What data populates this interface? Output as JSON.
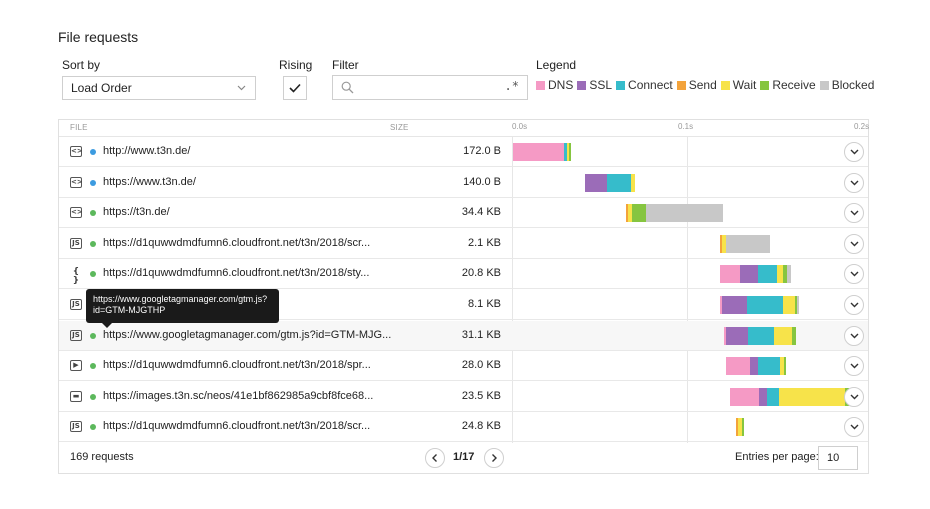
{
  "title": "File requests",
  "sort": {
    "label": "Sort by",
    "value": "Load Order"
  },
  "rising": {
    "label": "Rising",
    "checked": true
  },
  "filter": {
    "label": "Filter",
    "value": "",
    "regex_glyph": ".*"
  },
  "legend": {
    "label": "Legend",
    "items": [
      {
        "name": "DNS",
        "color": "#f59ac5"
      },
      {
        "name": "SSL",
        "color": "#9b6cb8"
      },
      {
        "name": "Connect",
        "color": "#36bccb"
      },
      {
        "name": "Send",
        "color": "#f3a33b"
      },
      {
        "name": "Wait",
        "color": "#f7e34a"
      },
      {
        "name": "Receive",
        "color": "#86c540"
      },
      {
        "name": "Blocked",
        "color": "#c8c8c8"
      }
    ]
  },
  "table": {
    "headers": {
      "file": "FILE",
      "size": "SIZE"
    },
    "timeline_labels": [
      "0.0s",
      "0.1s",
      "0.2s"
    ]
  },
  "rows": [
    {
      "icon": "html-file-icon",
      "glyph": "<>",
      "dot": "#3c9be0",
      "url": "http://www.t3n.de/",
      "size": "172.0 B",
      "timing": {
        "start": 0,
        "dns": 0.0295,
        "ssl": 0,
        "connect": 0.0017,
        "send": 0,
        "wait": 0.0011,
        "receive": 0.0011,
        "blocked": 0
      }
    },
    {
      "icon": "html-file-icon",
      "glyph": "<>",
      "dot": "#3c9be0",
      "url": "https://www.t3n.de/",
      "size": "140.0 B",
      "timing": {
        "start": 0.0416,
        "dns": 0,
        "ssl": 0.0126,
        "connect": 0.0137,
        "send": 0,
        "wait": 0.0023,
        "receive": 0,
        "blocked": 0
      }
    },
    {
      "icon": "html-file-icon",
      "glyph": "<>",
      "dot": "#5cb85c",
      "url": "https://t3n.de/",
      "size": "34.4 KB",
      "timing": {
        "start": 0.0649,
        "dns": 0,
        "ssl": 0,
        "connect": 0,
        "send": 0.0011,
        "wait": 0.0023,
        "receive": 0.008,
        "blocked": 0.0446
      }
    },
    {
      "icon": "js-file-icon",
      "glyph": "JS",
      "dot": "#5cb85c",
      "url": "https://d1quwwdmdfumn6.cloudfront.net/t3n/2018/scr...",
      "size": "2.1 KB",
      "timing": {
        "start": 0.1189,
        "dns": 0,
        "ssl": 0,
        "connect": 0,
        "send": 0.0011,
        "wait": 0.0023,
        "receive": 0,
        "blocked": 0.0251
      }
    },
    {
      "icon": "css-file-icon",
      "glyph": "{ }",
      "dot": "#5cb85c",
      "url": "https://d1quwwdmdfumn6.cloudfront.net/t3n/2018/sty...",
      "size": "20.8 KB",
      "timing": {
        "start": 0.1189,
        "dns": 0.0114,
        "ssl": 0.0103,
        "connect": 0.0114,
        "send": 0,
        "wait": 0.0034,
        "receive": 0.0023,
        "blocked": 0.0023
      }
    },
    {
      "icon": "js-file-icon",
      "glyph": "JS",
      "dot": "#5cb85c",
      "url": "",
      "size": "8.1 KB",
      "timing": {
        "start": 0.1189,
        "dns": 0.0011,
        "ssl": 0.0143,
        "connect": 0.0206,
        "send": 0,
        "wait": 0.0069,
        "receive": 0.0011,
        "blocked": 0.0011
      }
    },
    {
      "icon": "js-file-icon",
      "glyph": "JS",
      "dot": "#5cb85c",
      "url": "https://www.googletagmanager.com/gtm.js?id=GTM-MJG...",
      "size": "31.1 KB",
      "timing": {
        "start": 0.1211,
        "dns": 0.0011,
        "ssl": 0.0131,
        "connect": 0.0149,
        "send": 0,
        "wait": 0.0103,
        "receive": 0.0023,
        "blocked": 0
      }
    },
    {
      "icon": "video-file-icon",
      "glyph": "▶",
      "dot": "#5cb85c",
      "url": "https://d1quwwdmdfumn6.cloudfront.net/t3n/2018/spr...",
      "size": "28.0 KB",
      "timing": {
        "start": 0.1223,
        "dns": 0.0137,
        "ssl": 0.0046,
        "connect": 0.0126,
        "send": 0,
        "wait": 0.0023,
        "receive": 0.0011,
        "blocked": 0
      }
    },
    {
      "icon": "image-file-icon",
      "glyph": "▬",
      "dot": "#5cb85c",
      "url": "https://images.t3n.sc/neos/41e1bf862985a9cbf8fce68...",
      "size": "23.5 KB",
      "timing": {
        "start": 0.1246,
        "dns": 0.0166,
        "ssl": 0.0046,
        "connect": 0.0069,
        "send": 0,
        "wait": 0.0383,
        "receive": 0.0023,
        "blocked": 0
      }
    },
    {
      "icon": "js-file-icon",
      "glyph": "JS",
      "dot": "#5cb85c",
      "url": "https://d1quwwdmdfumn6.cloudfront.net/t3n/2018/scr...",
      "size": "24.8 KB",
      "timing": {
        "start": 0.128,
        "dns": 0,
        "ssl": 0,
        "connect": 0,
        "send": 0.0011,
        "wait": 0.0023,
        "receive": 0.0011,
        "blocked": 0
      }
    }
  ],
  "tooltip": {
    "line1": "https://www.googletagmanager.com/gtm.js?",
    "line2": "id=GTM-MJGTHP"
  },
  "footer": {
    "count": "169 requests",
    "page": "1/17",
    "entries_label": "Entries per page:",
    "entries_value": "10"
  }
}
